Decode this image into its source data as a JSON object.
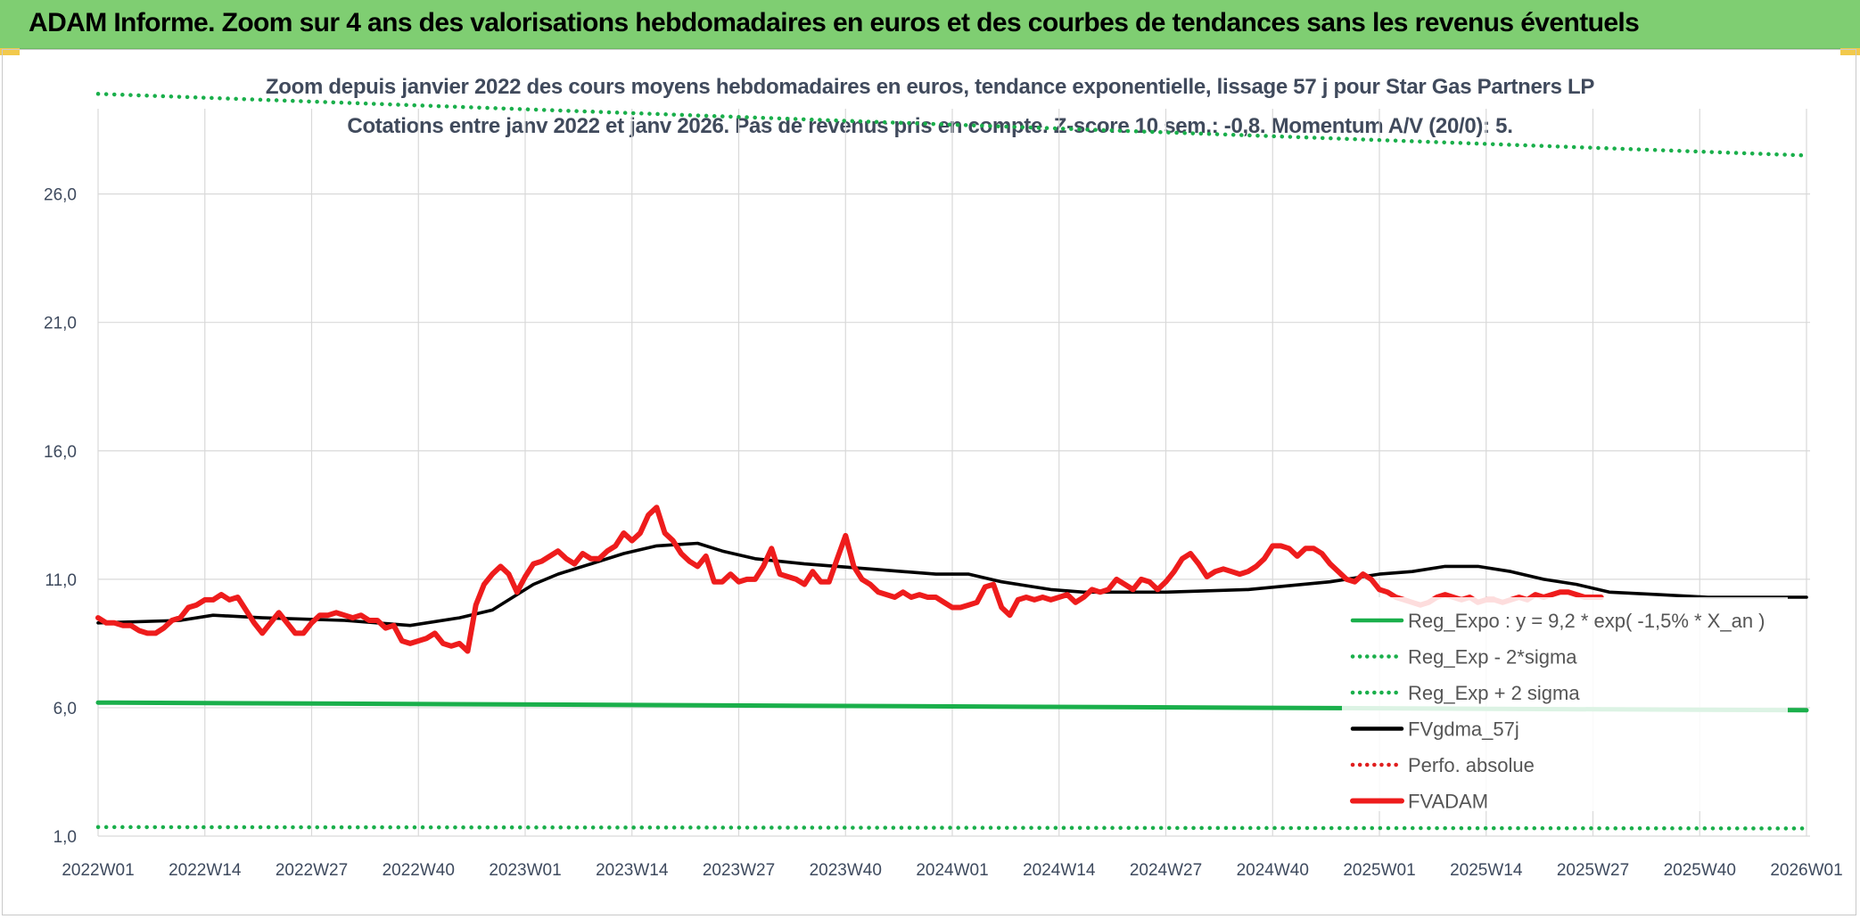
{
  "header": {
    "title": "ADAM Informe. Zoom sur 4 ans des valorisations hebdomadaires en euros et des courbes de tendances sans les revenus éventuels"
  },
  "chart_data": {
    "type": "line",
    "title": "Zoom depuis janvier 2022 des cours moyens hebdomadaires en euros, tendance exponentielle, lissage 57 j pour Star Gas Partners LP",
    "subtitle": "Cotations entre janv 2022 et janv 2026. Pas de revenus pris en compte. Z-score 10 sem.: -0,8. Momentum A/V (20/0): 5.",
    "xlabel": "",
    "ylabel": "",
    "x_tick_labels": [
      "2022W01",
      "2022W14",
      "2022W27",
      "2022W40",
      "2023W01",
      "2023W14",
      "2023W27",
      "2023W40",
      "2024W01",
      "2024W14",
      "2024W27",
      "2024W40",
      "2025W01",
      "2025W14",
      "2025W27",
      "2025W40",
      "2026W01"
    ],
    "y_tick_labels": [
      "1,0",
      "6,0",
      "11,0",
      "16,0",
      "21,0",
      "26,0"
    ],
    "ylim": [
      1.0,
      28.0
    ],
    "grid": true,
    "legend_position": "bottom-right",
    "series": [
      {
        "name": "Reg_Expo : y = 9,2 * exp( -1,5% * X_an )",
        "color": "#1aaf4b",
        "style": "solid",
        "points": [
          [
            0,
            6.2
          ],
          [
            208,
            5.9
          ]
        ]
      },
      {
        "name": "Reg_Exp - 2*sigma",
        "color": "#1aaf4b",
        "style": "dotted",
        "points": [
          [
            0,
            1.35
          ],
          [
            208,
            1.3
          ]
        ]
      },
      {
        "name": "Reg_Exp + 2 sigma",
        "color": "#1aaf4b",
        "style": "dotted",
        "points": [
          [
            0,
            29.9
          ],
          [
            208,
            27.5
          ]
        ]
      },
      {
        "name": "FVgdma_57j",
        "color": "#000000",
        "style": "solid",
        "points": [
          [
            0,
            9.3
          ],
          [
            10,
            9.4
          ],
          [
            14,
            9.6
          ],
          [
            20,
            9.5
          ],
          [
            30,
            9.4
          ],
          [
            34,
            9.3
          ],
          [
            38,
            9.2
          ],
          [
            44,
            9.5
          ],
          [
            48,
            9.8
          ],
          [
            50,
            10.2
          ],
          [
            53,
            10.8
          ],
          [
            56,
            11.2
          ],
          [
            60,
            11.6
          ],
          [
            64,
            12.0
          ],
          [
            68,
            12.3
          ],
          [
            73,
            12.4
          ],
          [
            76,
            12.1
          ],
          [
            80,
            11.8
          ],
          [
            86,
            11.6
          ],
          [
            94,
            11.4
          ],
          [
            102,
            11.2
          ],
          [
            106,
            11.2
          ],
          [
            110,
            10.9
          ],
          [
            116,
            10.6
          ],
          [
            120,
            10.5
          ],
          [
            130,
            10.5
          ],
          [
            140,
            10.6
          ],
          [
            150,
            10.9
          ],
          [
            156,
            11.2
          ],
          [
            160,
            11.3
          ],
          [
            164,
            11.5
          ],
          [
            168,
            11.5
          ],
          [
            172,
            11.3
          ],
          [
            176,
            11.0
          ],
          [
            180,
            10.8
          ],
          [
            184,
            10.5
          ],
          [
            190,
            10.4
          ],
          [
            196,
            10.3
          ],
          [
            208,
            10.3
          ]
        ]
      },
      {
        "name": "Perfo. absolue",
        "color": "#e01e1e",
        "style": "dotted",
        "points": []
      },
      {
        "name": "FVADAM",
        "color": "#ee1c1c",
        "style": "solid",
        "points": [
          [
            0,
            9.5
          ],
          [
            1,
            9.3
          ],
          [
            2,
            9.3
          ],
          [
            3,
            9.2
          ],
          [
            4,
            9.2
          ],
          [
            5,
            9.0
          ],
          [
            6,
            8.9
          ],
          [
            7,
            8.9
          ],
          [
            8,
            9.1
          ],
          [
            9,
            9.4
          ],
          [
            10,
            9.5
          ],
          [
            11,
            9.9
          ],
          [
            12,
            10.0
          ],
          [
            13,
            10.2
          ],
          [
            14,
            10.2
          ],
          [
            15,
            10.4
          ],
          [
            16,
            10.2
          ],
          [
            17,
            10.3
          ],
          [
            18,
            9.8
          ],
          [
            19,
            9.3
          ],
          [
            20,
            8.9
          ],
          [
            21,
            9.3
          ],
          [
            22,
            9.7
          ],
          [
            23,
            9.3
          ],
          [
            24,
            8.9
          ],
          [
            25,
            8.9
          ],
          [
            26,
            9.3
          ],
          [
            27,
            9.6
          ],
          [
            28,
            9.6
          ],
          [
            29,
            9.7
          ],
          [
            30,
            9.6
          ],
          [
            31,
            9.5
          ],
          [
            32,
            9.6
          ],
          [
            33,
            9.4
          ],
          [
            34,
            9.4
          ],
          [
            35,
            9.1
          ],
          [
            36,
            9.2
          ],
          [
            37,
            8.6
          ],
          [
            38,
            8.5
          ],
          [
            39,
            8.6
          ],
          [
            40,
            8.7
          ],
          [
            41,
            8.9
          ],
          [
            42,
            8.5
          ],
          [
            43,
            8.4
          ],
          [
            44,
            8.5
          ],
          [
            45,
            8.2
          ],
          [
            46,
            10.0
          ],
          [
            47,
            10.8
          ],
          [
            48,
            11.2
          ],
          [
            49,
            11.5
          ],
          [
            50,
            11.2
          ],
          [
            51,
            10.5
          ],
          [
            52,
            11.1
          ],
          [
            53,
            11.6
          ],
          [
            54,
            11.7
          ],
          [
            55,
            11.9
          ],
          [
            56,
            12.1
          ],
          [
            57,
            11.8
          ],
          [
            58,
            11.6
          ],
          [
            59,
            12.0
          ],
          [
            60,
            11.8
          ],
          [
            61,
            11.8
          ],
          [
            62,
            12.1
          ],
          [
            63,
            12.3
          ],
          [
            64,
            12.8
          ],
          [
            65,
            12.5
          ],
          [
            66,
            12.8
          ],
          [
            67,
            13.5
          ],
          [
            68,
            13.8
          ],
          [
            69,
            12.8
          ],
          [
            70,
            12.5
          ],
          [
            71,
            12.0
          ],
          [
            72,
            11.7
          ],
          [
            73,
            11.5
          ],
          [
            74,
            11.9
          ],
          [
            75,
            10.9
          ],
          [
            76,
            10.9
          ],
          [
            77,
            11.2
          ],
          [
            78,
            10.9
          ],
          [
            79,
            11.0
          ],
          [
            80,
            11.0
          ],
          [
            81,
            11.5
          ],
          [
            82,
            12.2
          ],
          [
            83,
            11.2
          ],
          [
            84,
            11.1
          ],
          [
            85,
            11.0
          ],
          [
            86,
            10.8
          ],
          [
            87,
            11.3
          ],
          [
            88,
            10.9
          ],
          [
            89,
            10.9
          ],
          [
            90,
            11.8
          ],
          [
            91,
            12.7
          ],
          [
            92,
            11.5
          ],
          [
            93,
            11.0
          ],
          [
            94,
            10.8
          ],
          [
            95,
            10.5
          ],
          [
            96,
            10.4
          ],
          [
            97,
            10.3
          ],
          [
            98,
            10.5
          ],
          [
            99,
            10.3
          ],
          [
            100,
            10.4
          ],
          [
            101,
            10.3
          ],
          [
            102,
            10.3
          ],
          [
            103,
            10.1
          ],
          [
            104,
            9.9
          ],
          [
            105,
            9.9
          ],
          [
            106,
            10.0
          ],
          [
            107,
            10.1
          ],
          [
            108,
            10.7
          ],
          [
            109,
            10.8
          ],
          [
            110,
            9.9
          ],
          [
            111,
            9.6
          ],
          [
            112,
            10.2
          ],
          [
            113,
            10.3
          ],
          [
            114,
            10.2
          ],
          [
            115,
            10.3
          ],
          [
            116,
            10.2
          ],
          [
            117,
            10.3
          ],
          [
            118,
            10.4
          ],
          [
            119,
            10.1
          ],
          [
            120,
            10.3
          ],
          [
            121,
            10.6
          ],
          [
            122,
            10.5
          ],
          [
            123,
            10.6
          ],
          [
            124,
            11.0
          ],
          [
            125,
            10.8
          ],
          [
            126,
            10.6
          ],
          [
            127,
            11.0
          ],
          [
            128,
            10.9
          ],
          [
            129,
            10.6
          ],
          [
            130,
            10.9
          ],
          [
            131,
            11.3
          ],
          [
            132,
            11.8
          ],
          [
            133,
            12.0
          ],
          [
            134,
            11.6
          ],
          [
            135,
            11.1
          ],
          [
            136,
            11.3
          ],
          [
            137,
            11.4
          ],
          [
            138,
            11.3
          ],
          [
            139,
            11.2
          ],
          [
            140,
            11.3
          ],
          [
            141,
            11.5
          ],
          [
            142,
            11.8
          ],
          [
            143,
            12.3
          ],
          [
            144,
            12.3
          ],
          [
            145,
            12.2
          ],
          [
            146,
            11.9
          ],
          [
            147,
            12.2
          ],
          [
            148,
            12.2
          ],
          [
            149,
            12.0
          ],
          [
            150,
            11.6
          ],
          [
            151,
            11.3
          ],
          [
            152,
            11.0
          ],
          [
            153,
            10.9
          ],
          [
            154,
            11.2
          ],
          [
            155,
            11.0
          ],
          [
            156,
            10.6
          ],
          [
            157,
            10.5
          ],
          [
            158,
            10.3
          ],
          [
            159,
            10.2
          ],
          [
            160,
            10.1
          ],
          [
            161,
            10.0
          ],
          [
            162,
            10.1
          ],
          [
            163,
            10.3
          ],
          [
            164,
            10.4
          ],
          [
            165,
            10.3
          ],
          [
            166,
            10.2
          ],
          [
            167,
            10.3
          ],
          [
            168,
            10.1
          ],
          [
            169,
            10.2
          ],
          [
            170,
            10.2
          ],
          [
            171,
            10.1
          ],
          [
            172,
            10.2
          ],
          [
            173,
            10.3
          ],
          [
            174,
            10.2
          ],
          [
            175,
            10.4
          ],
          [
            176,
            10.3
          ],
          [
            177,
            10.4
          ],
          [
            178,
            10.5
          ],
          [
            179,
            10.5
          ],
          [
            180,
            10.4
          ],
          [
            181,
            10.3
          ],
          [
            182,
            10.3
          ],
          [
            183,
            10.3
          ]
        ]
      }
    ]
  }
}
